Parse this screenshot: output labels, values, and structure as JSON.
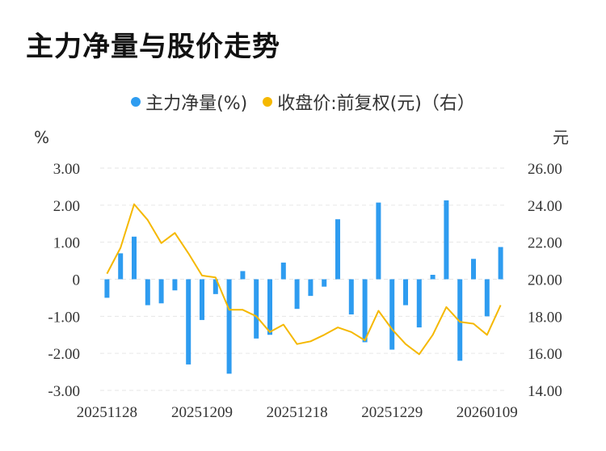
{
  "title": "主力净量与股价走势",
  "chart_data": {
    "type": "bar+line",
    "legend": [
      {
        "name": "主力净量(%)",
        "color": "#2e9cf0"
      },
      {
        "name": "收盘价:前复权(元)（右）",
        "color": "#f5b800"
      }
    ],
    "left_unit": "%",
    "right_unit": "元",
    "left_ticks": [
      "3.00",
      "2.00",
      "1.00",
      "0",
      "-1.00",
      "-2.00",
      "-3.00"
    ],
    "right_ticks": [
      "26.00",
      "24.00",
      "22.00",
      "20.00",
      "18.00",
      "16.00",
      "14.00"
    ],
    "ylim_left": [
      -3,
      3
    ],
    "ylim_right": [
      14,
      26
    ],
    "x_tick_labels": [
      {
        "index": 0,
        "label": "20251128"
      },
      {
        "index": 7,
        "label": "20251209"
      },
      {
        "index": 14,
        "label": "20251218"
      },
      {
        "index": 21,
        "label": "20251229"
      },
      {
        "index": 28,
        "label": "20260109"
      }
    ],
    "series": [
      {
        "name": "主力净量(%)",
        "kind": "bar",
        "values": [
          -0.5,
          0.7,
          1.15,
          -0.7,
          -0.65,
          -0.3,
          -2.3,
          -1.1,
          -0.4,
          -2.55,
          0.22,
          -1.6,
          -1.5,
          0.45,
          -0.8,
          -0.45,
          -0.2,
          1.62,
          -0.95,
          -1.7,
          2.07,
          -1.9,
          -0.7,
          -1.3,
          0.12,
          2.13,
          -2.2,
          0.55,
          -1.0,
          0.87
        ]
      },
      {
        "name": "收盘价:前复权(元)（右）",
        "kind": "line",
        "values": [
          20.3,
          21.7,
          24.05,
          23.2,
          21.95,
          22.5,
          21.4,
          20.2,
          20.1,
          18.35,
          18.35,
          18.0,
          17.15,
          17.55,
          16.5,
          16.65,
          17.0,
          17.4,
          17.15,
          16.7,
          18.3,
          17.3,
          16.5,
          15.95,
          17.0,
          18.5,
          17.7,
          17.6,
          17.0,
          18.6
        ]
      }
    ]
  }
}
